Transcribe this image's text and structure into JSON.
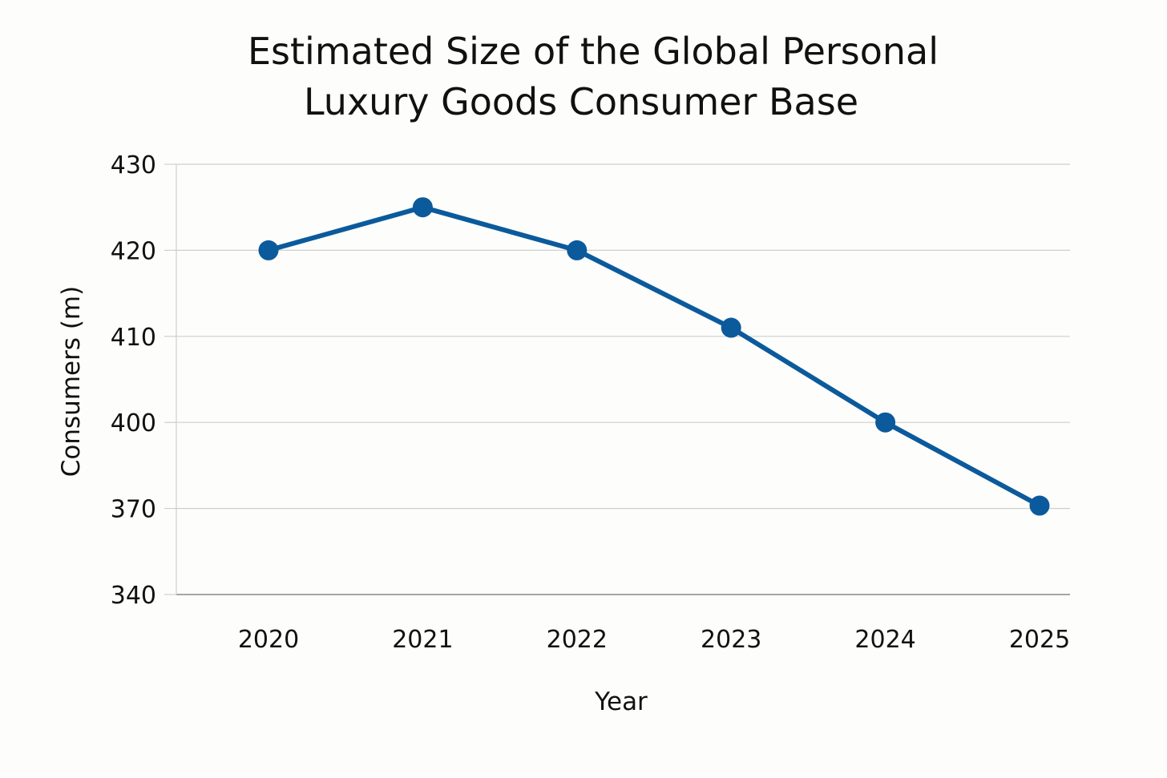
{
  "chart_data": {
    "type": "line",
    "title_lines": [
      "Estimated Size of the Global Personal",
      "Luxury Goods Consumer Base"
    ],
    "xlabel": "Year",
    "ylabel": "Consumers (m)",
    "categories": [
      "2020",
      "2021",
      "2022",
      "2023",
      "2024",
      "2025"
    ],
    "series": [
      {
        "name": "Consumers (m)",
        "values": [
          420,
          425,
          420,
          411,
          400,
          371
        ]
      }
    ],
    "y_ticks": [
      430,
      420,
      410,
      400,
      370,
      340
    ],
    "ylim": [
      340,
      430
    ],
    "grid": true,
    "legend": "none",
    "colors": {
      "line": "#0b5a9c",
      "grid": "#cfcfcf",
      "axis": "#888888"
    }
  }
}
